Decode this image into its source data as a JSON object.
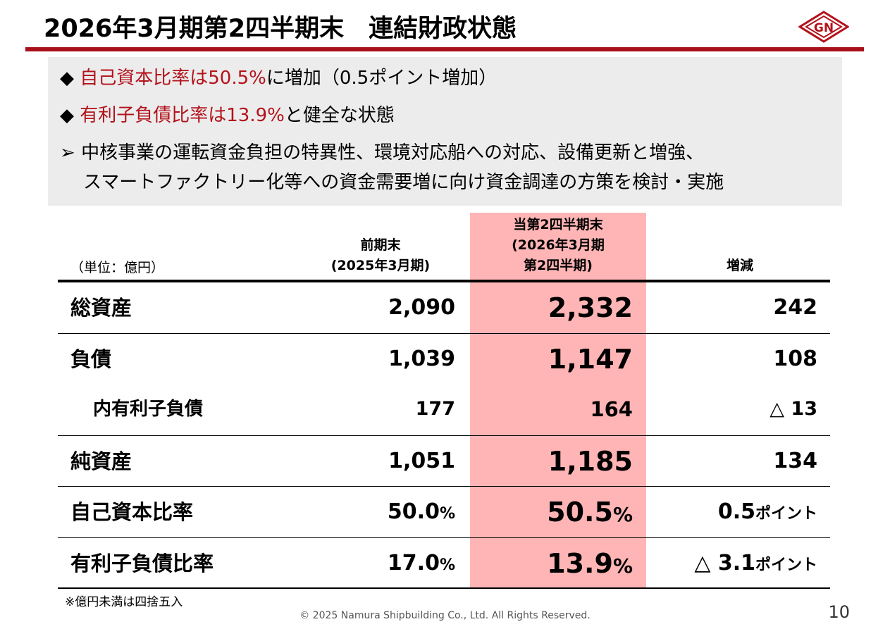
{
  "title": "2026年3月期第2四半期末　連結財政状態",
  "logo_text": "GN",
  "bullets": [
    {
      "marker": "◆",
      "highlight": "自己資本比率は50.5%",
      "rest": "に増加（0.5ポイント増加）"
    },
    {
      "marker": "◆",
      "highlight": "有利子負債比率は13.9%",
      "rest": "と健全な状態"
    },
    {
      "marker": "➢",
      "line1": "中核事業の運転資金負担の特異性、環境対応船への対応、設備更新と増強、",
      "line2": "スマートファクトリー化等への資金需要増に向け資金調達の方策を検討・実施"
    }
  ],
  "table": {
    "unit": "（単位：億円）",
    "headers": {
      "prev": [
        "前期末",
        "(2025年3月期)"
      ],
      "cur": [
        "当第2四半期末",
        "(2026年3月期",
        "第2四半期)"
      ],
      "chg": "増減"
    },
    "rows": [
      {
        "label": "総資産",
        "prev": "2,090",
        "cur": "2,332",
        "chg": "242"
      },
      {
        "label": "負債",
        "prev": "1,039",
        "cur": "1,147",
        "chg": "108"
      },
      {
        "label": "内有利子負債",
        "prev": "177",
        "cur": "164",
        "chg": "△ 13",
        "sub": true
      },
      {
        "label": "純資産",
        "prev": "1,051",
        "cur": "1,185",
        "chg": "134"
      },
      {
        "label": "自己資本比率",
        "prev": "50.0",
        "cur": "50.5",
        "chg": "0.5",
        "unit": "%",
        "chg_unit": "ポイント"
      },
      {
        "label": "有利子負債比率",
        "prev": "17.0",
        "cur": "13.9",
        "chg": "△ 3.1",
        "unit": "%",
        "chg_unit": "ポイント"
      }
    ]
  },
  "note": "※億円未満は四捨五入",
  "copyright": "© 2025 Namura Shipbuilding Co., Ltd. All Rights Reserved.",
  "page_number": "10",
  "colors": {
    "accent": "#a8101a",
    "highlight_text": "#b3121b",
    "current_column": "#ffb5b5",
    "box": "#ececec"
  }
}
